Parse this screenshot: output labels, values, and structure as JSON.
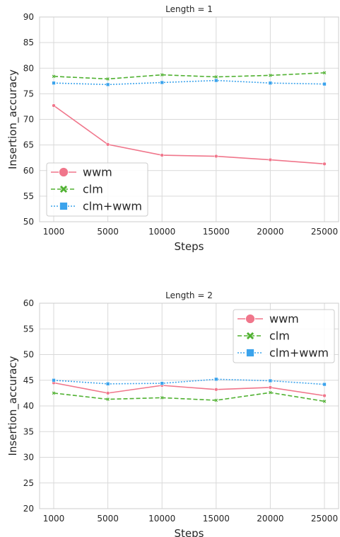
{
  "chart_data": [
    {
      "type": "line",
      "title": "Length = 1",
      "xlabel": "Steps",
      "ylabel": "Insertion_accuracy",
      "ylim": [
        50,
        90
      ],
      "yticks": [
        50,
        55,
        60,
        65,
        70,
        75,
        80,
        85,
        90
      ],
      "categories": [
        "1000",
        "5000",
        "10000",
        "15000",
        "20000",
        "25000"
      ],
      "grid": true,
      "legend_position": "lower-left",
      "series": [
        {
          "name": "wwm",
          "color": "#f0768b",
          "marker": "circle",
          "line_style": "solid",
          "values": [
            72.7,
            65.1,
            63.0,
            62.8,
            62.1,
            61.3
          ]
        },
        {
          "name": "clm",
          "color": "#50b131",
          "marker": "x",
          "line_style": "dashed",
          "values": [
            78.4,
            77.9,
            78.7,
            78.3,
            78.6,
            79.1
          ]
        },
        {
          "name": "clm+wwm",
          "color": "#3ba3ec",
          "marker": "square",
          "line_style": "dotted",
          "values": [
            77.1,
            76.8,
            77.2,
            77.6,
            77.1,
            76.9
          ]
        }
      ]
    },
    {
      "type": "line",
      "title": "Length = 2",
      "xlabel": "Steps",
      "ylabel": "Insertion_accuracy",
      "ylim": [
        20,
        60
      ],
      "yticks": [
        20,
        25,
        30,
        35,
        40,
        45,
        50,
        55,
        60
      ],
      "categories": [
        "1000",
        "5000",
        "10000",
        "15000",
        "20000",
        "25000"
      ],
      "grid": true,
      "legend_position": "upper-right",
      "series": [
        {
          "name": "wwm",
          "color": "#f0768b",
          "marker": "circle",
          "line_style": "solid",
          "values": [
            44.5,
            42.5,
            44.0,
            43.2,
            43.6,
            42.0
          ]
        },
        {
          "name": "clm",
          "color": "#50b131",
          "marker": "x",
          "line_style": "dashed",
          "values": [
            42.5,
            41.3,
            41.6,
            41.1,
            42.6,
            40.9
          ]
        },
        {
          "name": "clm+wwm",
          "color": "#3ba3ec",
          "marker": "square",
          "line_style": "dotted",
          "values": [
            45.0,
            44.3,
            44.4,
            45.2,
            44.9,
            44.2
          ]
        }
      ]
    }
  ]
}
